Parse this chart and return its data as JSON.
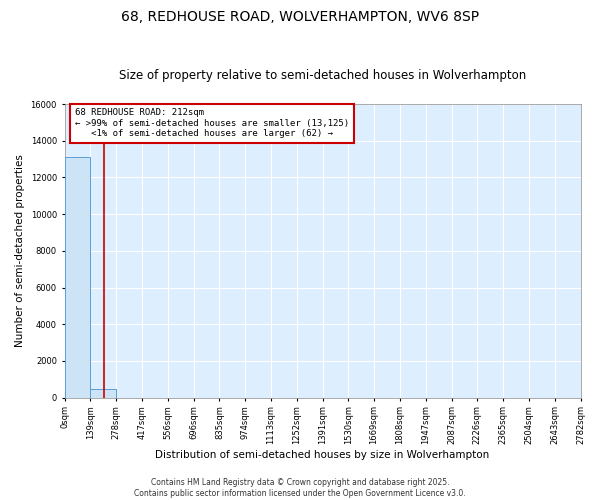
{
  "title": "68, REDHOUSE ROAD, WOLVERHAMPTON, WV6 8SP",
  "subtitle": "Size of property relative to semi-detached houses in Wolverhampton",
  "xlabel": "Distribution of semi-detached houses by size in Wolverhampton",
  "ylabel": "Number of semi-detached properties",
  "bin_edges": [
    0,
    139,
    278,
    417,
    556,
    696,
    835,
    974,
    1113,
    1252,
    1391,
    1530,
    1669,
    1808,
    1947,
    2087,
    2226,
    2365,
    2504,
    2643,
    2782
  ],
  "bar_heights": [
    13125,
    500,
    0,
    0,
    0,
    0,
    0,
    0,
    0,
    0,
    0,
    0,
    0,
    0,
    0,
    0,
    0,
    0,
    0,
    0
  ],
  "bar_color": "#cce4f5",
  "bar_edgecolor": "#5a9fd4",
  "ylim": [
    0,
    16000
  ],
  "yticks": [
    0,
    2000,
    4000,
    6000,
    8000,
    10000,
    12000,
    14000,
    16000
  ],
  "property_size": 212,
  "red_line_color": "#cc0000",
  "annotation_line1": "68 REDHOUSE ROAD: 212sqm",
  "annotation_line2": "← >99% of semi-detached houses are smaller (13,125)",
  "annotation_line3": "   <1% of semi-detached houses are larger (62) →",
  "annotation_box_color": "#cc0000",
  "footer_text": "Contains HM Land Registry data © Crown copyright and database right 2025.\nContains public sector information licensed under the Open Government Licence v3.0.",
  "fig_bg_color": "#ffffff",
  "plot_bg_color": "#ddeeff",
  "grid_color": "#ffffff",
  "title_fontsize": 10,
  "subtitle_fontsize": 8.5,
  "tick_label_fontsize": 6,
  "ylabel_fontsize": 7.5,
  "xlabel_fontsize": 7.5,
  "footer_fontsize": 5.5
}
